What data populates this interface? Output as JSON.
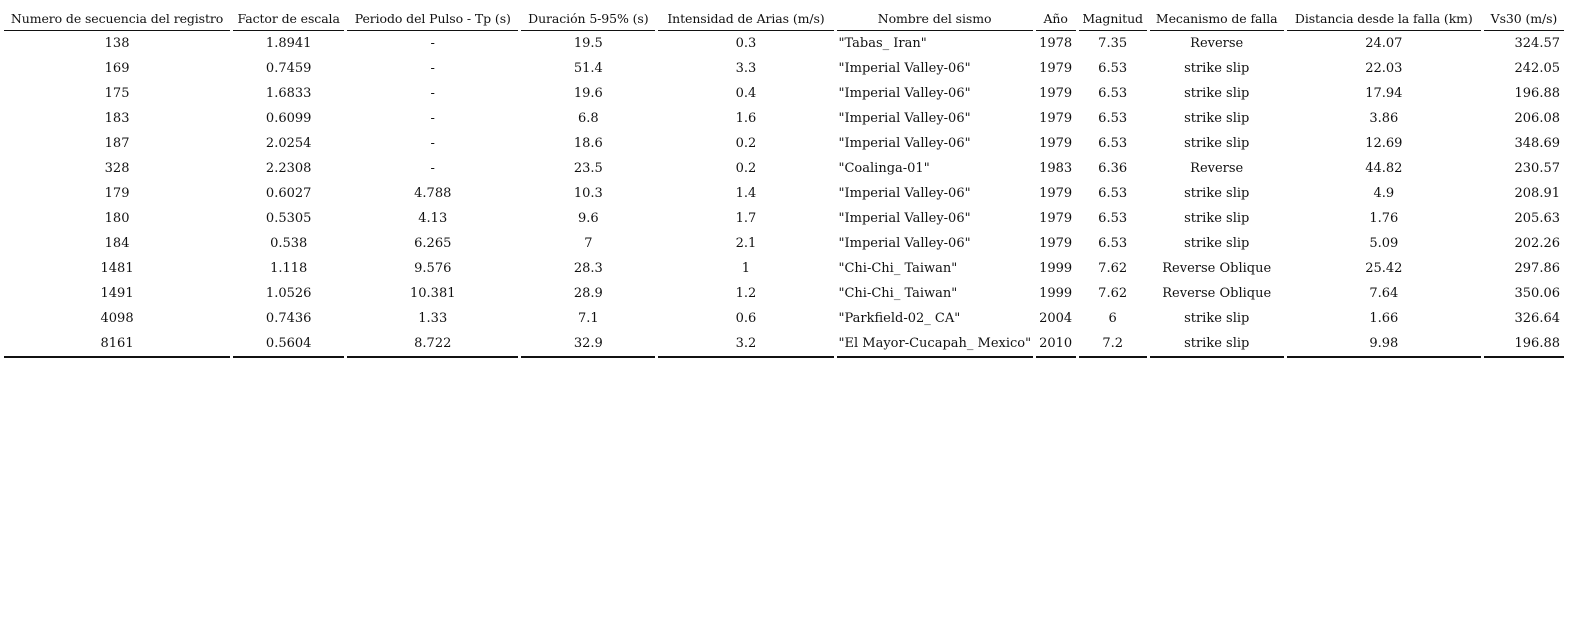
{
  "table": {
    "headers": [
      "Numero de secuencia del registro",
      "Factor de escala",
      "Periodo del Pulso - Tp (s)",
      "Duración 5-95% (s)",
      "Intensidad de Arias (m/s)",
      "Nombre del sismo",
      "Año",
      "Magnitud",
      "Mecanismo de falla",
      "Distancia desde la falla (km)",
      "Vs30 (m/s)"
    ],
    "rows": [
      [
        "138",
        "1.8941",
        "-",
        "19.5",
        "0.3",
        "\"Tabas_ Iran\"",
        "1978",
        "7.35",
        "Reverse",
        "24.07",
        "324.57"
      ],
      [
        "169",
        "0.7459",
        "-",
        "51.4",
        "3.3",
        "\"Imperial Valley-06\"",
        "1979",
        "6.53",
        "strike slip",
        "22.03",
        "242.05"
      ],
      [
        "175",
        "1.6833",
        "-",
        "19.6",
        "0.4",
        "\"Imperial Valley-06\"",
        "1979",
        "6.53",
        "strike slip",
        "17.94",
        "196.88"
      ],
      [
        "183",
        "0.6099",
        "-",
        "6.8",
        "1.6",
        "\"Imperial Valley-06\"",
        "1979",
        "6.53",
        "strike slip",
        "3.86",
        "206.08"
      ],
      [
        "187",
        "2.0254",
        "-",
        "18.6",
        "0.2",
        "\"Imperial Valley-06\"",
        "1979",
        "6.53",
        "strike slip",
        "12.69",
        "348.69"
      ],
      [
        "328",
        "2.2308",
        "-",
        "23.5",
        "0.2",
        "\"Coalinga-01\"",
        "1983",
        "6.36",
        "Reverse",
        "44.82",
        "230.57"
      ],
      [
        "179",
        "0.6027",
        "4.788",
        "10.3",
        "1.4",
        "\"Imperial Valley-06\"",
        "1979",
        "6.53",
        "strike slip",
        "4.9",
        "208.91"
      ],
      [
        "180",
        "0.5305",
        "4.13",
        "9.6",
        "1.7",
        "\"Imperial Valley-06\"",
        "1979",
        "6.53",
        "strike slip",
        "1.76",
        "205.63"
      ],
      [
        "184",
        "0.538",
        "6.265",
        "7",
        "2.1",
        "\"Imperial Valley-06\"",
        "1979",
        "6.53",
        "strike slip",
        "5.09",
        "202.26"
      ],
      [
        "1481",
        "1.118",
        "9.576",
        "28.3",
        "1",
        "\"Chi-Chi_ Taiwan\"",
        "1999",
        "7.62",
        "Reverse Oblique",
        "25.42",
        "297.86"
      ],
      [
        "1491",
        "1.0526",
        "10.381",
        "28.9",
        "1.2",
        "\"Chi-Chi_ Taiwan\"",
        "1999",
        "7.62",
        "Reverse Oblique",
        "7.64",
        "350.06"
      ],
      [
        "4098",
        "0.7436",
        "1.33",
        "7.1",
        "0.6",
        "\"Parkfield-02_ CA\"",
        "2004",
        "6",
        "strike slip",
        "1.66",
        "326.64"
      ],
      [
        "8161",
        "0.5604",
        "8.722",
        "32.9",
        "3.2",
        "\"El Mayor-Cucapah_ Mexico\"",
        "2010",
        "7.2",
        "strike slip",
        "9.98",
        "196.88"
      ]
    ]
  }
}
